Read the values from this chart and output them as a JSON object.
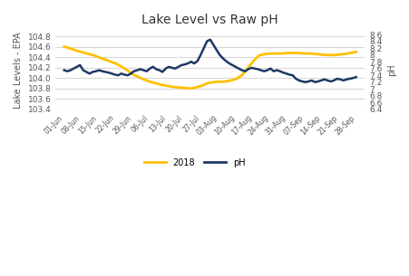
{
  "title": "Lake Level vs Raw pH",
  "ylabel_left": "Lake Levels - EPA",
  "ylabel_right": "pH",
  "ylim_left": [
    103.4,
    104.9
  ],
  "ylim_right": [
    6.4,
    8.7
  ],
  "yticks_left": [
    103.4,
    103.6,
    103.8,
    104.0,
    104.2,
    104.4,
    104.6,
    104.8
  ],
  "yticks_right": [
    6.4,
    6.6,
    6.8,
    7.0,
    7.2,
    7.4,
    7.6,
    7.8,
    8.0,
    8.2,
    8.4,
    8.6
  ],
  "xtick_labels": [
    "01-Jun",
    "08-Jun",
    "15-Jun",
    "22-Jun",
    "29-Jun",
    "06-Jul",
    "13-Jul",
    "20-Jul",
    "27-Jul",
    "03-Aug",
    "10-Aug",
    "17-Aug",
    "24-Aug",
    "31-Aug",
    "07-Sep",
    "14-Sep",
    "21-Sep",
    "28-Sep"
  ],
  "lake_color": "#FFC000",
  "ph_color": "#1F3864",
  "legend_labels": [
    "2018",
    "pH"
  ],
  "background_color": "#FFFFFF",
  "grid_color": "#D9D9D9",
  "lake_levels": [
    104.6,
    104.57,
    104.53,
    104.5,
    104.47,
    104.44,
    104.4,
    104.36,
    104.32,
    104.28,
    104.22,
    104.15,
    104.07,
    104.02,
    103.97,
    103.93,
    103.9,
    103.87,
    103.85,
    103.83,
    103.82,
    103.81,
    103.8,
    103.82,
    103.85,
    103.9,
    103.92,
    103.93,
    103.93,
    103.95,
    103.98,
    104.05,
    104.18,
    104.32,
    104.43,
    104.46,
    104.47,
    104.47,
    104.47,
    104.48,
    104.48,
    104.48,
    104.47,
    104.47,
    104.46,
    104.45,
    104.44,
    104.44,
    104.45,
    104.46,
    104.48,
    104.5
  ],
  "ph_values": [
    7.55,
    7.52,
    7.55,
    7.6,
    7.65,
    7.7,
    7.55,
    7.5,
    7.45,
    7.5,
    7.52,
    7.55,
    7.52,
    7.5,
    7.48,
    7.45,
    7.42,
    7.4,
    7.45,
    7.42,
    7.4,
    7.45,
    7.52,
    7.55,
    7.58,
    7.55,
    7.52,
    7.6,
    7.65,
    7.58,
    7.55,
    7.5,
    7.6,
    7.65,
    7.62,
    7.6,
    7.65,
    7.7,
    7.72,
    7.75,
    7.8,
    7.75,
    7.82,
    8.0,
    8.2,
    8.4,
    8.45,
    8.3,
    8.15,
    8.0,
    7.9,
    7.82,
    7.75,
    7.7,
    7.65,
    7.6,
    7.55,
    7.52,
    7.58,
    7.62,
    7.6,
    7.58,
    7.55,
    7.52,
    7.55,
    7.6,
    7.52,
    7.55,
    7.52,
    7.48,
    7.45,
    7.42,
    7.4,
    7.3,
    7.25,
    7.22,
    7.2,
    7.22,
    7.25,
    7.2,
    7.22,
    7.25,
    7.28,
    7.25,
    7.22,
    7.25,
    7.3,
    7.28,
    7.25,
    7.28,
    7.3,
    7.32,
    7.35
  ]
}
